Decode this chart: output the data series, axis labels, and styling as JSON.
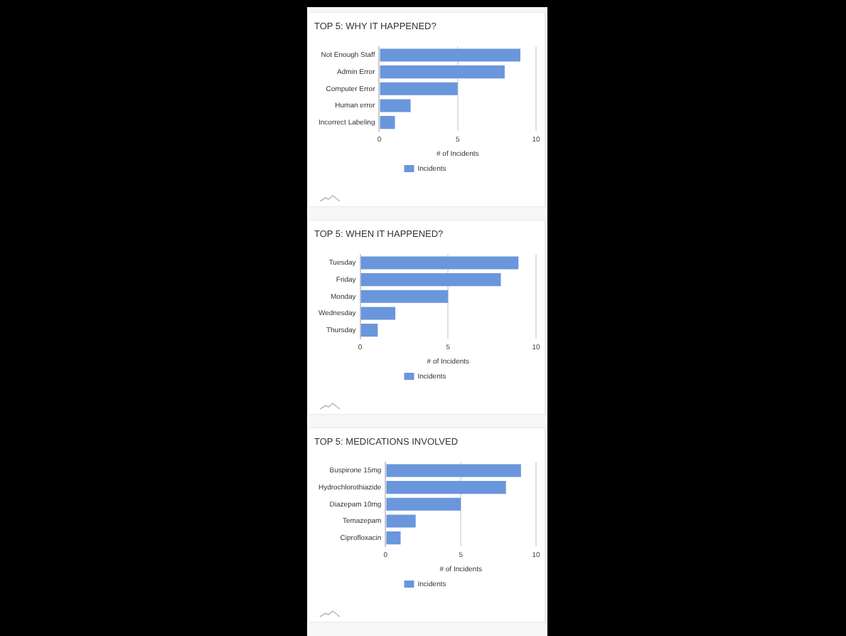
{
  "chart_data": [
    {
      "type": "bar",
      "orientation": "horizontal",
      "title": "TOP 5: WHY IT HAPPENED?",
      "categories": [
        "Not Enough Staff",
        "Admin Error",
        "Computer Error",
        "Human error",
        "Incorrect Labeling"
      ],
      "series": [
        {
          "name": "Incidents",
          "color": "#6a96dc",
          "values": [
            9,
            8,
            5,
            2,
            1
          ]
        }
      ],
      "xlabel": "# of Incidents",
      "xlim": [
        0,
        10
      ],
      "xticks": [
        0,
        5,
        10
      ],
      "grid": "x",
      "legend": "bottom"
    },
    {
      "type": "bar",
      "orientation": "horizontal",
      "title": "TOP 5: WHEN IT HAPPENED?",
      "categories": [
        "Tuesday",
        "Friday",
        "Monday",
        "Wednesday",
        "Thursday"
      ],
      "series": [
        {
          "name": "Incidents",
          "color": "#6a96dc",
          "values": [
            9,
            8,
            5,
            2,
            1
          ]
        }
      ],
      "xlabel": "# of Incidents",
      "xlim": [
        0,
        10
      ],
      "xticks": [
        0,
        5,
        10
      ],
      "grid": "x",
      "legend": "bottom"
    },
    {
      "type": "bar",
      "orientation": "horizontal",
      "title": "TOP 5: MEDICATIONS INVOLVED",
      "categories": [
        "Buspirone 15mg",
        "Hydrochlorothiazide",
        "Diazepam 10mg",
        "Temazepam",
        "Ciprofloxacin"
      ],
      "series": [
        {
          "name": "Incidents",
          "color": "#6a96dc",
          "values": [
            9,
            8,
            5,
            2,
            1
          ]
        }
      ],
      "xlabel": "# of Incidents",
      "xlim": [
        0,
        10
      ],
      "xticks": [
        0,
        5,
        10
      ],
      "grid": "x",
      "legend": "bottom"
    }
  ]
}
